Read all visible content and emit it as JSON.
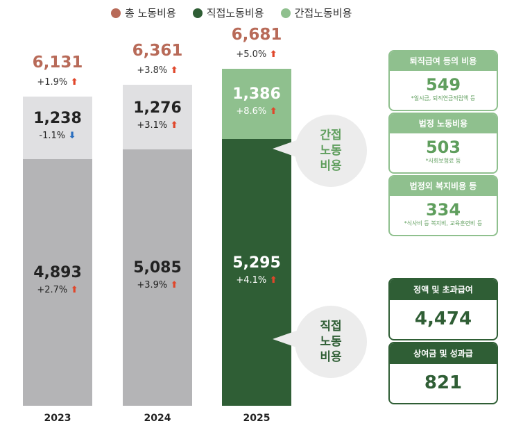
{
  "legend": [
    {
      "label": "총 노동비용",
      "color": "#b86a58"
    },
    {
      "label": "직접노동비용",
      "color": "#2f5e35"
    },
    {
      "label": "간접노동비용",
      "color": "#8fc08e"
    }
  ],
  "bars": [
    {
      "year": "2023",
      "total": "6,131",
      "total_change": "+1.9%",
      "total_dir": "up",
      "indirect": "1,238",
      "indirect_change": "-1.1%",
      "indirect_dir": "down",
      "direct": "4,893",
      "direct_change": "+2.7%",
      "direct_dir": "up"
    },
    {
      "year": "2024",
      "total": "6,361",
      "total_change": "+3.8%",
      "total_dir": "up",
      "indirect": "1,276",
      "indirect_change": "+3.1%",
      "indirect_dir": "up",
      "direct": "5,085",
      "direct_change": "+3.9%",
      "direct_dir": "up"
    },
    {
      "year": "2025",
      "total": "6,681",
      "total_change": "+5.0%",
      "total_dir": "up",
      "indirect": "1,386",
      "indirect_change": "+8.6%",
      "indirect_dir": "up",
      "direct": "5,295",
      "direct_change": "+4.1%",
      "direct_dir": "up"
    }
  ],
  "bubbles": {
    "indirect": "간접\n노동\n비용",
    "direct": "직접\n노동\n비용"
  },
  "indirect_cards": [
    {
      "title": "퇴직급여 등의 비용",
      "value": "549",
      "note": "*일시금, 퇴직연금적립액 등"
    },
    {
      "title": "법정 노동비용",
      "value": "503",
      "note": "*사회보험료 등"
    },
    {
      "title": "법정외 복지비용 등",
      "value": "334",
      "note": "*식사비 등 복지비, 교육훈련비 등"
    }
  ],
  "direct_cards": [
    {
      "title": "정액 및 초과급여",
      "value": "4,474"
    },
    {
      "title": "상여금 및 성과급",
      "value": "821"
    }
  ],
  "chart_data": {
    "type": "bar",
    "categories": [
      "2023",
      "2024",
      "2025"
    ],
    "series": [
      {
        "name": "직접노동비용",
        "values": [
          4893,
          5085,
          5295
        ],
        "changes": [
          "+2.7%",
          "+3.9%",
          "+4.1%"
        ]
      },
      {
        "name": "간접노동비용",
        "values": [
          1238,
          1276,
          1386
        ],
        "changes": [
          "-1.1%",
          "+3.1%",
          "+8.6%"
        ]
      }
    ],
    "totals": {
      "name": "총 노동비용",
      "values": [
        6131,
        6361,
        6681
      ],
      "changes": [
        "+1.9%",
        "+3.8%",
        "+5.0%"
      ]
    },
    "stacked": true,
    "breakdown_2025": {
      "간접노동비용": [
        {
          "name": "퇴직급여 등의 비용",
          "value": 549
        },
        {
          "name": "법정 노동비용",
          "value": 503
        },
        {
          "name": "법정외 복지비용 등",
          "value": 334
        }
      ],
      "직접노동비용": [
        {
          "name": "정액 및 초과급여",
          "value": 4474
        },
        {
          "name": "상여금 및 성과급",
          "value": 821
        }
      ]
    },
    "colors": {
      "total": "#b86a58",
      "direct_2025": "#2f5e35",
      "indirect_2025": "#8fc08e",
      "direct_past": "#b4b4b6",
      "indirect_past": "#e0e0e2"
    }
  }
}
